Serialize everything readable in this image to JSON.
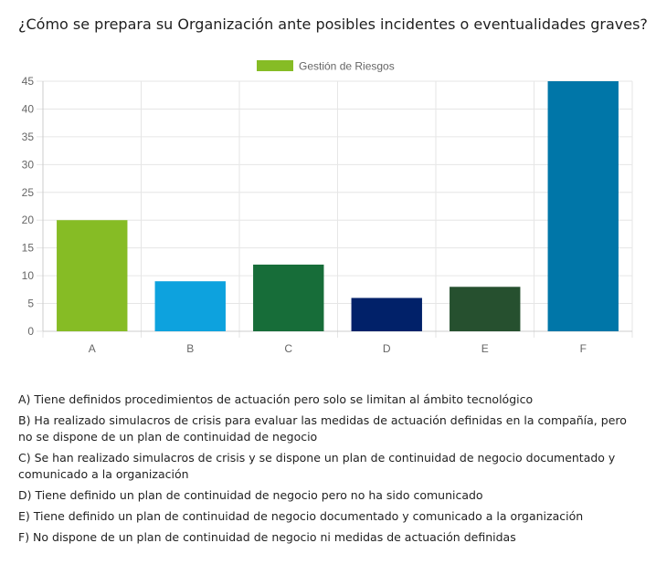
{
  "question": "¿Cómo se prepara su Organización ante posibles incidentes o eventualidades graves?",
  "chart_data": {
    "type": "bar",
    "title": "",
    "legend": [
      {
        "label": "Gestión de Riesgos",
        "color": "#86bc25"
      }
    ],
    "categories": [
      "A",
      "B",
      "C",
      "D",
      "E",
      "F"
    ],
    "values": [
      20,
      9,
      12,
      6,
      8,
      45
    ],
    "colors": [
      "#86bc25",
      "#0da2de",
      "#176d39",
      "#012169",
      "#26502f",
      "#0076a8"
    ],
    "ylim": [
      0,
      45
    ],
    "yticks": [
      0,
      5,
      10,
      15,
      20,
      25,
      30,
      35,
      40,
      45
    ],
    "xlabel": "",
    "ylabel": "",
    "grid": true
  },
  "notes": [
    "A) Tiene definidos procedimientos de actuación pero solo se limitan al ámbito tecnológico",
    "B) Ha realizado simulacros de crisis para evaluar las medidas de actuación definidas en la compañía, pero no se dispone de un plan de continuidad de negocio",
    "C) Se han realizado simulacros de crisis y se dispone un plan de continuidad de negocio documentado y comunicado a la organización",
    "D) Tiene definido un plan de continuidad de negocio pero no ha sido comunicado",
    "E) Tiene definido un plan de continuidad de negocio documentado y comunicado a la organización",
    "F) No dispone de un plan de continuidad de negocio ni medidas de actuación definidas"
  ]
}
